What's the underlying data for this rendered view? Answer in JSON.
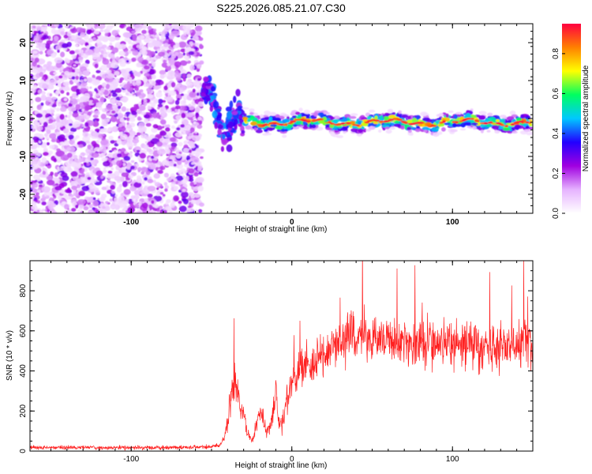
{
  "title": "S225.2026.085.21.07.C30",
  "chart_data": [
    {
      "type": "heatmap",
      "xlabel": "Height of straight line (km)",
      "ylabel": "Frequency (Hz)",
      "xlim": [
        -163,
        150
      ],
      "ylim": [
        -25,
        25
      ],
      "xticks": [
        -100,
        0,
        100
      ],
      "yticks": [
        -20,
        -10,
        0,
        10,
        20
      ],
      "colorbar": {
        "label": "Normalized spectral amplitude",
        "range": [
          0,
          0.95
        ],
        "ticks": [
          "0.0",
          "0.2",
          "0.4",
          "0.6",
          "0.8"
        ],
        "ticks_values": [
          0.0,
          0.2,
          0.4,
          0.6,
          0.8
        ],
        "colors": [
          "#ffffff",
          "#e6b3ff",
          "#a000e0",
          "#2200ff",
          "#00c8ff",
          "#00ff60",
          "#ffff00",
          "#ff8000",
          "#ff0040"
        ]
      },
      "features": [
        {
          "name": "noise band",
          "x_range": [
            -163,
            -56
          ],
          "y_range": [
            -25,
            25
          ],
          "amplitude": [
            0.05,
            0.3
          ]
        },
        {
          "name": "transition",
          "x_range": [
            -56,
            -30
          ],
          "y_range": [
            -5,
            16
          ],
          "amplitude": [
            0.2,
            0.45
          ]
        },
        {
          "name": "signal trace",
          "x_range": [
            -30,
            150
          ],
          "y_center": -1,
          "amplitude": [
            0.5,
            0.95
          ]
        }
      ]
    },
    {
      "type": "line",
      "xlabel": "Height of straight line (km)",
      "ylabel": "SNR (10 * v/v)",
      "xlim": [
        -163,
        150
      ],
      "ylim": [
        0,
        950
      ],
      "xticks": [
        -100,
        0,
        100
      ],
      "yticks": [
        0,
        200,
        400,
        600,
        800
      ],
      "color": "#ff2020",
      "series": [
        {
          "name": "SNR",
          "x": [
            -163,
            -140,
            -120,
            -100,
            -80,
            -60,
            -50,
            -45,
            -42,
            -40,
            -38,
            -35,
            -33,
            -30,
            -28,
            -25,
            -22,
            -20,
            -18,
            -15,
            -12,
            -10,
            -8,
            -5,
            -3,
            0,
            5,
            10,
            15,
            20,
            25,
            30,
            35,
            40,
            45,
            50,
            55,
            60,
            65,
            70,
            75,
            80,
            85,
            90,
            95,
            100,
            105,
            110,
            115,
            120,
            125,
            130,
            135,
            140,
            145,
            150
          ],
          "values": [
            18,
            18,
            17,
            18,
            18,
            19,
            20,
            28,
            60,
            160,
            280,
            330,
            250,
            180,
            90,
            60,
            120,
            220,
            150,
            90,
            200,
            310,
            130,
            150,
            260,
            330,
            390,
            430,
            450,
            480,
            520,
            550,
            570,
            580,
            570,
            575,
            560,
            555,
            550,
            545,
            540,
            548,
            545,
            540,
            545,
            540,
            535,
            540,
            530,
            525,
            520,
            530,
            520,
            540,
            560,
            520
          ],
          "noise_amplitude": 120
        }
      ]
    }
  ]
}
